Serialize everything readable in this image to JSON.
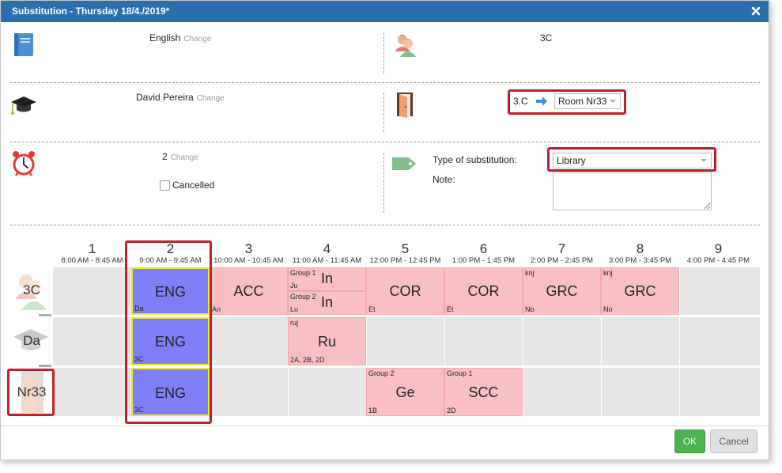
{
  "dialog": {
    "title": "Substitution - Thursday 18/4./2019*",
    "close_symbol": "✖"
  },
  "subject": {
    "value": "English",
    "change": "Change"
  },
  "teacher": {
    "value": "David Pereira",
    "change": "Change"
  },
  "period": {
    "value": "2",
    "change": "Change",
    "cancelled_label": "Cancelled"
  },
  "class": {
    "value": "3C"
  },
  "room": {
    "from": "3.C",
    "to": "Room Nr33"
  },
  "substitution": {
    "type_label": "Type of substitution:",
    "type_value": "Library",
    "note_label": "Note:"
  },
  "timetable": {
    "columns": [
      {
        "num": "1",
        "time": "8:00 AM - 8:45 AM"
      },
      {
        "num": "2",
        "time": "9:00 AM - 9:45 AM"
      },
      {
        "num": "3",
        "time": "10:00 AM - 10:45 AM"
      },
      {
        "num": "4",
        "time": "11:00 AM - 11:45 AM"
      },
      {
        "num": "5",
        "time": "12:00 PM - 12:45 PM"
      },
      {
        "num": "6",
        "time": "1:00 PM - 1:45 PM"
      },
      {
        "num": "7",
        "time": "2:00 PM - 2:45 PM"
      },
      {
        "num": "8",
        "time": "3:00 PM - 3:45 PM"
      },
      {
        "num": "9",
        "time": "4:00 PM - 4:45 PM"
      }
    ],
    "rows": [
      {
        "label": "3C"
      },
      {
        "label": "Da"
      },
      {
        "label": "Nr33"
      }
    ],
    "lessons": {
      "r1c2": {
        "subj": "ENG",
        "bl": "Da"
      },
      "r1c3": {
        "subj": "ACC",
        "bl": "An"
      },
      "r1c4a": {
        "subj": "In",
        "tl": "Group 1",
        "bl": "Ju"
      },
      "r1c4b": {
        "subj": "In",
        "tl": "Group 2",
        "bl": "Lu"
      },
      "r1c5": {
        "subj": "COR",
        "bl": "Et"
      },
      "r1c6": {
        "subj": "COR",
        "bl": "Et"
      },
      "r1c7": {
        "subj": "GRC",
        "tl": "knj",
        "bl": "No"
      },
      "r1c8": {
        "subj": "GRC",
        "tl": "knj",
        "bl": "No"
      },
      "r2c2": {
        "subj": "ENG",
        "bl": "3C"
      },
      "r2c4": {
        "subj": "Ru",
        "tl": "ruj",
        "bl": "2A, 2B, 2D"
      },
      "r3c2": {
        "subj": "ENG",
        "bl": "3C"
      },
      "r3c5": {
        "subj": "Ge",
        "tl": "Group 2",
        "bl": "1B"
      },
      "r3c6": {
        "subj": "SCC",
        "tl": "Group 1",
        "bl": "2D"
      }
    }
  },
  "buttons": {
    "ok": "OK",
    "cancel": "Cancel"
  },
  "colors": {
    "titlebar": "#2a6ead",
    "lesson": "#f9c0c4",
    "selected_lesson": "#7f7ff7",
    "highlight": "#c0202a",
    "ok": "#4fb250"
  }
}
